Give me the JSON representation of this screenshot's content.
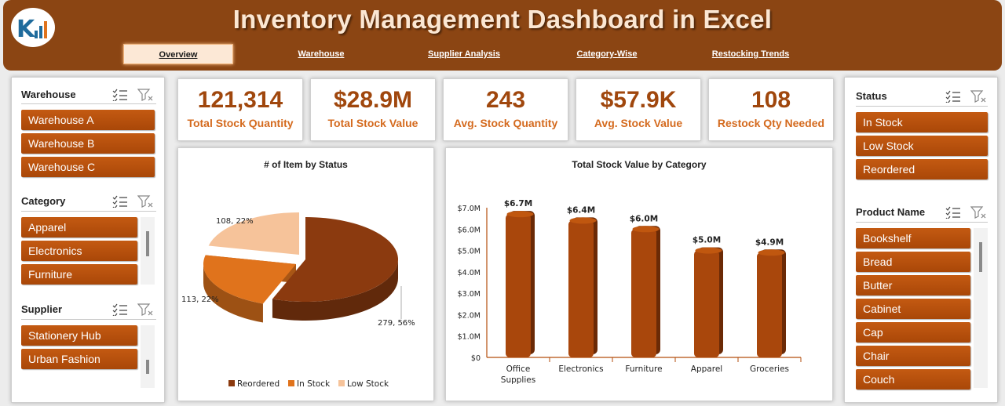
{
  "header": {
    "title": "Inventory Management Dashboard in Excel",
    "tabs": [
      {
        "label": "Overview",
        "active": true
      },
      {
        "label": "Warehouse",
        "active": false
      },
      {
        "label": "Supplier Analysis",
        "active": false
      },
      {
        "label": "Category-Wise",
        "active": false
      },
      {
        "label": "Restocking Trends",
        "active": false
      }
    ]
  },
  "left_slicers": {
    "warehouse": {
      "title": "Warehouse",
      "items": [
        "Warehouse A",
        "Warehouse B",
        "Warehouse C"
      ]
    },
    "category": {
      "title": "Category",
      "items": [
        "Apparel",
        "Electronics",
        "Furniture"
      ]
    },
    "supplier": {
      "title": "Supplier",
      "items": [
        "Stationery Hub",
        "Urban Fashion"
      ]
    }
  },
  "right_slicers": {
    "status": {
      "title": "Status",
      "items": [
        "In Stock",
        "Low Stock",
        "Reordered"
      ]
    },
    "product": {
      "title": "Product Name",
      "items": [
        "Bookshelf",
        "Bread",
        "Butter",
        "Cabinet",
        "Cap",
        "Chair",
        "Couch"
      ]
    }
  },
  "kpis": [
    {
      "value": "121,314",
      "label": "Total Stock Quantity"
    },
    {
      "value": "$28.9M",
      "label": "Total Stock Value"
    },
    {
      "value": "243",
      "label": "Avg. Stock Quantity"
    },
    {
      "value": "$57.9K",
      "label": "Avg.  Stock Value"
    },
    {
      "value": "108",
      "label": "Restock Qty Needed"
    }
  ],
  "colors": {
    "header_bg": "#8b4513",
    "accent": "#a0470d",
    "kpi_label": "#d46a1e",
    "slicer_button": "#b34e0c"
  },
  "icons": {
    "multi_select": "multi-select-icon",
    "clear_filter": "clear-filter-icon"
  },
  "chart_data": [
    {
      "type": "pie",
      "title": "# of Item by Status",
      "slices": [
        {
          "name": "Reordered",
          "value": 279,
          "percent": "56%",
          "label": "279, 56%",
          "color": "#8b3a0f"
        },
        {
          "name": "In Stock",
          "value": 113,
          "percent": "22%",
          "label": "113, 22%",
          "color": "#e0731c"
        },
        {
          "name": "Low Stock",
          "value": 108,
          "percent": "22%",
          "label": "108, 22%",
          "color": "#f6c39a"
        }
      ],
      "legend": {
        "position": "bottom"
      }
    },
    {
      "type": "bar",
      "title": "Total Stock Value by Category",
      "categories": [
        "Office Supplies",
        "Electronics",
        "Furniture",
        "Apparel",
        "Groceries"
      ],
      "values": [
        6.7,
        6.4,
        6.0,
        5.0,
        4.9
      ],
      "data_labels": [
        "$6.7M",
        "$6.4M",
        "$6.0M",
        "$5.0M",
        "$4.9M"
      ],
      "yticks": [
        "$0",
        "$1.0M",
        "$2.0M",
        "$3.0M",
        "$4.0M",
        "$5.0M",
        "$6.0M",
        "$7.0M"
      ],
      "ylim": [
        0,
        7
      ],
      "bar_color": "#a9470c"
    }
  ]
}
